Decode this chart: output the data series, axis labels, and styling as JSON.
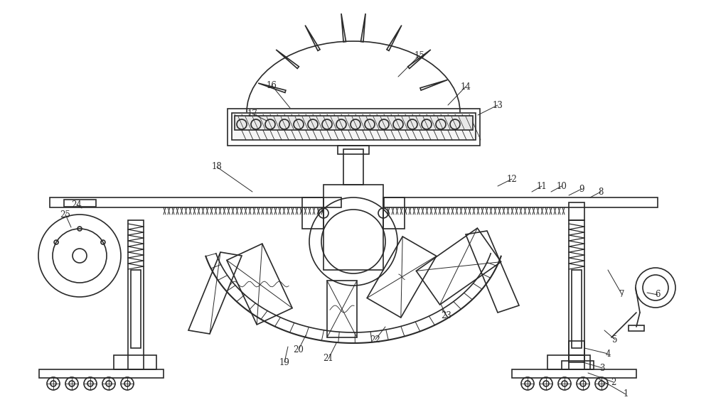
{
  "bg_color": "#ffffff",
  "line_color": "#2a2a2a",
  "line_width": 1.2,
  "figsize": [
    10.0,
    5.8
  ],
  "dpi": 100
}
